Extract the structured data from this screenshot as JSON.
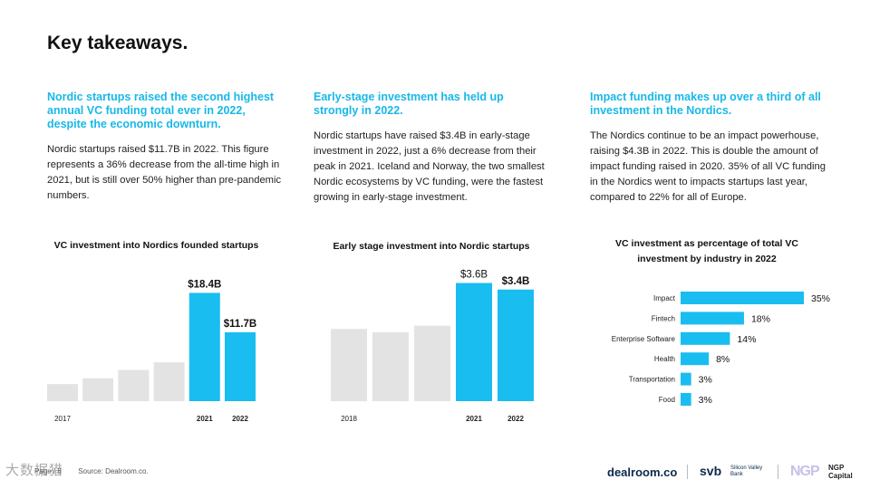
{
  "title": "Key takeaways.",
  "columns": [
    {
      "heading": "Nordic startups raised the second highest annual VC funding total ever in 2022, despite the economic downturn.",
      "body": "Nordic startups raised $11.7B in 2022. This figure represents a 36% decrease from the all-time high in 2021, but is still over 50% higher than pre-pandemic numbers."
    },
    {
      "heading": "Early-stage investment has held up strongly in 2022.",
      "body": "Nordic startups have raised $3.4B in early-stage investment in 2022, just a 6% decrease from their peak in 2021. Iceland and Norway, the two smallest Nordic ecosystems by VC funding, were the fastest growing in early-stage investment."
    },
    {
      "heading": "Impact funding makes up over a third of all investment in the Nordics.",
      "body": "The Nordics continue to be an impact powerhouse, raising $4.3B in 2022. This is double the amount of impact funding raised in 2020. 35% of all VC funding in the Nordics went to impacts startups last year, compared to 22% for all of Europe."
    }
  ],
  "chart_data": [
    {
      "type": "bar",
      "title": "VC investment into Nordics founded startups",
      "categories": [
        "2017",
        "2018",
        "2019",
        "2020",
        "2021",
        "2022"
      ],
      "visible_tick_labels": [
        "2017",
        "",
        "",
        "",
        "2021",
        "2022"
      ],
      "values": [
        2.9,
        3.9,
        5.3,
        6.6,
        18.4,
        11.7
      ],
      "data_labels": [
        "",
        "",
        "",
        "",
        "$18.4B",
        "$11.7B"
      ],
      "highlight": [
        false,
        false,
        false,
        false,
        true,
        true
      ],
      "ylim": [
        0,
        20
      ]
    },
    {
      "type": "bar",
      "title": "Early stage investment into Nordic startups",
      "categories": [
        "2018",
        "2019",
        "2020",
        "2021",
        "2022"
      ],
      "visible_tick_labels": [
        "2018",
        "",
        "",
        "2021",
        "2022"
      ],
      "values": [
        2.2,
        2.1,
        2.3,
        3.6,
        3.4
      ],
      "data_labels": [
        "",
        "",
        "",
        "$3.6B",
        "$3.4B"
      ],
      "highlight": [
        false,
        false,
        false,
        true,
        true
      ],
      "ylim": [
        0,
        4
      ]
    },
    {
      "type": "bar",
      "orientation": "horizontal",
      "title_lines": [
        "VC investment as percentage of total VC",
        "investment by industry in 2022"
      ],
      "categories": [
        "Impact",
        "Fintech",
        "Enterprise Software",
        "Health",
        "Transportation",
        "Food"
      ],
      "values": [
        35,
        18,
        14,
        8,
        3,
        3
      ],
      "data_labels": [
        "35%",
        "18%",
        "14%",
        "8%",
        "3%",
        "3%"
      ],
      "unit": "%"
    }
  ],
  "footer": {
    "page": "Page / 8",
    "source": "Source: Dealroom.co.",
    "watermark": "大数据猎"
  },
  "logos": {
    "dealroom": "dealroom.co",
    "svb": "svb",
    "svb_sub": "Silicon Valley Bank",
    "ngp": "NGP",
    "ngp_sub": "NGP Capital"
  },
  "colors": {
    "accent": "#18b8e8",
    "bar_blue": "#19bdf0",
    "bar_gray": "#e3e3e3"
  }
}
